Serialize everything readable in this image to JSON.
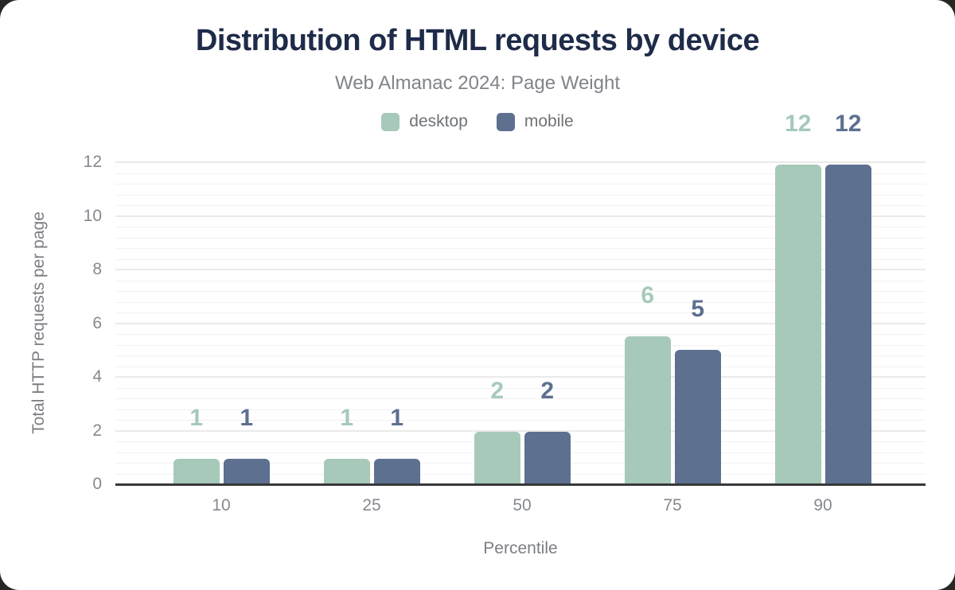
{
  "page": {
    "background_color": "#262624",
    "card_color": "#ffffff"
  },
  "header": {
    "title": "Distribution of HTML requests by device",
    "subtitle": "Web Almanac 2024: Page Weight",
    "title_color": "#1e2b49",
    "subtitle_color": "#80838a"
  },
  "chart_data": {
    "type": "bar",
    "title": "Distribution of HTML requests by device",
    "subtitle": "Web Almanac 2024: Page Weight",
    "xlabel": "Percentile",
    "ylabel": "Total HTTP requests per page",
    "categories": [
      "10",
      "25",
      "50",
      "75",
      "90"
    ],
    "y_ticks": [
      0,
      2,
      4,
      6,
      8,
      10,
      12
    ],
    "ylim": [
      0,
      12
    ],
    "minor_grid_step": 0.4,
    "grid": "on",
    "legend_position": "top",
    "axis_line_color": "#38383a",
    "grid_major_color": "#eaeaea",
    "grid_minor_color": "#f2f2f2",
    "series": [
      {
        "name": "desktop",
        "color": "#a7c9b9",
        "values": [
          1,
          1,
          2,
          6,
          12
        ],
        "labels": [
          "1",
          "1",
          "2",
          "6",
          "12"
        ],
        "bar_heights": [
          0.95,
          0.95,
          1.95,
          5.5,
          11.9
        ]
      },
      {
        "name": "mobile",
        "color": "#5d7090",
        "values": [
          1,
          1,
          2,
          5,
          12
        ],
        "labels": [
          "1",
          "1",
          "2",
          "5",
          "12"
        ],
        "bar_heights": [
          0.95,
          0.95,
          1.95,
          5.0,
          11.9
        ]
      }
    ]
  }
}
